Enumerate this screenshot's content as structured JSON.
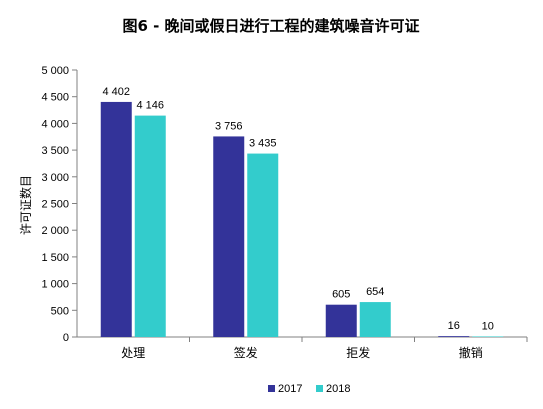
{
  "chart_data": {
    "type": "bar",
    "title": "图6 - 晚间或假日进行工程的建筑噪音许可证",
    "xlabel": "",
    "ylabel": "许可证数目",
    "categories": [
      "处理",
      "签发",
      "拒发",
      "撤销"
    ],
    "series": [
      {
        "name": "2017",
        "values": [
          4402,
          3756,
          605,
          16
        ],
        "labels": [
          "4 402",
          "3 756",
          "605",
          "16"
        ],
        "color": "#333399"
      },
      {
        "name": "2018",
        "values": [
          4146,
          3435,
          654,
          10
        ],
        "labels": [
          "4 146",
          "3 435",
          "654",
          "10"
        ],
        "color": "#33CCCC"
      }
    ],
    "ylim": [
      0,
      5000
    ],
    "yticks": [
      0,
      500,
      1000,
      1500,
      2000,
      2500,
      3000,
      3500,
      4000,
      4500,
      5000
    ],
    "ytick_labels": [
      "0",
      "500",
      "1 000",
      "1 500",
      "2 000",
      "2 500",
      "3 000",
      "3 500",
      "4 000",
      "4 500",
      "5 000"
    ],
    "grid": false,
    "legend": "bottom"
  }
}
